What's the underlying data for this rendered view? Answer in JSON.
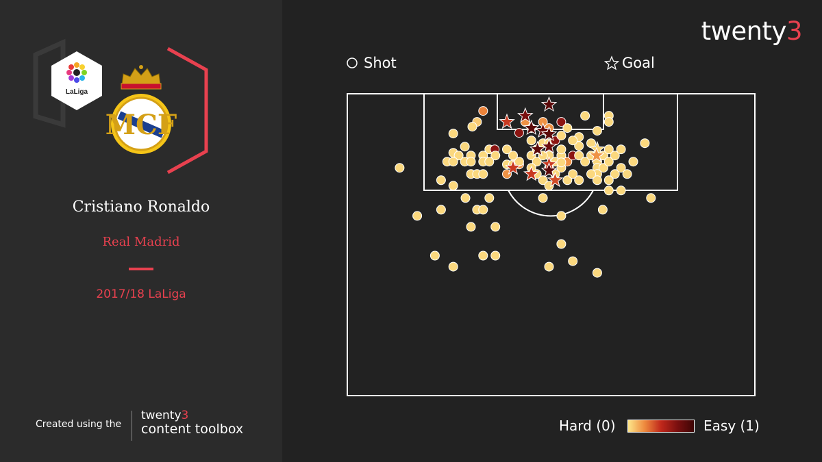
{
  "brand": {
    "name": "twenty",
    "number": "3"
  },
  "legend": {
    "shot": "Shot",
    "goal": "Goal"
  },
  "logos": {
    "league_logo_text": "LaLiga",
    "club_crest": "real-madrid-crest"
  },
  "player": {
    "name": "Cristiano Ronaldo",
    "team": "Real Madrid",
    "season": "2017/18 LaLiga"
  },
  "credit": {
    "prefix": "Created using the",
    "brand_name": "twenty",
    "brand_number": "3",
    "tool": "content toolbox"
  },
  "scale": {
    "low": "Hard (0)",
    "high": "Easy (1)"
  },
  "colors": {
    "accent": "#e8414f",
    "easy": "#3d0505",
    "hard": "#fde68a"
  },
  "chart_data": {
    "type": "scatter",
    "title": "",
    "xlabel": "",
    "ylabel": "",
    "xlim": [
      0,
      600
    ],
    "ylim": [
      0,
      440
    ],
    "color_scale": "xG difficulty: Hard (0) to Easy (1)",
    "series": [
      {
        "name": "Shot",
        "marker": "circle",
        "points": [
          {
            "x": 200,
            "y": 25,
            "v": 0.35
          },
          {
            "x": 191,
            "y": 41,
            "v": 0.1
          },
          {
            "x": 184,
            "y": 48,
            "v": 0.05
          },
          {
            "x": 156,
            "y": 58,
            "v": 0.05
          },
          {
            "x": 173,
            "y": 77,
            "v": 0.05
          },
          {
            "x": 209,
            "y": 81,
            "v": 0.05
          },
          {
            "x": 217,
            "y": 81,
            "v": 0.75
          },
          {
            "x": 235,
            "y": 81,
            "v": 0.05
          },
          {
            "x": 156,
            "y": 86,
            "v": 0.05
          },
          {
            "x": 164,
            "y": 90,
            "v": 0.05
          },
          {
            "x": 182,
            "y": 90,
            "v": 0.05
          },
          {
            "x": 200,
            "y": 90,
            "v": 0.05
          },
          {
            "x": 218,
            "y": 90,
            "v": 0.05
          },
          {
            "x": 244,
            "y": 90,
            "v": 0.05
          },
          {
            "x": 147,
            "y": 99,
            "v": 0.05
          },
          {
            "x": 156,
            "y": 99,
            "v": 0.05
          },
          {
            "x": 173,
            "y": 99,
            "v": 0.05
          },
          {
            "x": 182,
            "y": 99,
            "v": 0.05
          },
          {
            "x": 200,
            "y": 99,
            "v": 0.05
          },
          {
            "x": 209,
            "y": 99,
            "v": 0.05
          },
          {
            "x": 235,
            "y": 103,
            "v": 0.05
          },
          {
            "x": 244,
            "y": 103,
            "v": 0.05
          },
          {
            "x": 253,
            "y": 103,
            "v": 0.3
          },
          {
            "x": 182,
            "y": 117,
            "v": 0.05
          },
          {
            "x": 191,
            "y": 117,
            "v": 0.05
          },
          {
            "x": 200,
            "y": 117,
            "v": 0.05
          },
          {
            "x": 235,
            "y": 117,
            "v": 0.3
          },
          {
            "x": 138,
            "y": 126,
            "v": 0.05
          },
          {
            "x": 156,
            "y": 134,
            "v": 0.05
          },
          {
            "x": 77,
            "y": 108,
            "v": 0.05
          },
          {
            "x": 253,
            "y": 99,
            "v": 0.05
          },
          {
            "x": 271,
            "y": 90,
            "v": 0.05
          },
          {
            "x": 279,
            "y": 81,
            "v": 0.05
          },
          {
            "x": 279,
            "y": 99,
            "v": 0.05
          },
          {
            "x": 279,
            "y": 117,
            "v": 0.05
          },
          {
            "x": 297,
            "y": 90,
            "v": 0.05
          },
          {
            "x": 297,
            "y": 108,
            "v": 0.05
          },
          {
            "x": 306,
            "y": 99,
            "v": 0.05
          },
          {
            "x": 315,
            "y": 90,
            "v": 0.05
          },
          {
            "x": 315,
            "y": 108,
            "v": 0.05
          },
          {
            "x": 324,
            "y": 99,
            "v": 0.3
          },
          {
            "x": 332,
            "y": 90,
            "v": 0.75
          },
          {
            "x": 341,
            "y": 90,
            "v": 0.05
          },
          {
            "x": 341,
            "y": 76,
            "v": 0.05
          },
          {
            "x": 341,
            "y": 63,
            "v": 0.05
          },
          {
            "x": 350,
            "y": 99,
            "v": 0.05
          },
          {
            "x": 359,
            "y": 90,
            "v": 0.05
          },
          {
            "x": 359,
            "y": 72,
            "v": 0.05
          },
          {
            "x": 368,
            "y": 99,
            "v": 0.05
          },
          {
            "x": 368,
            "y": 108,
            "v": 0.05
          },
          {
            "x": 368,
            "y": 117,
            "v": 0.05
          },
          {
            "x": 368,
            "y": 126,
            "v": 0.05
          },
          {
            "x": 377,
            "y": 90,
            "v": 0.05
          },
          {
            "x": 377,
            "y": 108,
            "v": 0.05
          },
          {
            "x": 385,
            "y": 81,
            "v": 0.05
          },
          {
            "x": 385,
            "y": 99,
            "v": 0.05
          },
          {
            "x": 385,
            "y": 126,
            "v": 0.05
          },
          {
            "x": 394,
            "y": 90,
            "v": 0.05
          },
          {
            "x": 394,
            "y": 117,
            "v": 0.05
          },
          {
            "x": 403,
            "y": 81,
            "v": 0.05
          },
          {
            "x": 403,
            "y": 108,
            "v": 0.05
          },
          {
            "x": 412,
            "y": 117,
            "v": 0.05
          },
          {
            "x": 421,
            "y": 99,
            "v": 0.05
          },
          {
            "x": 438,
            "y": 72,
            "v": 0.05
          },
          {
            "x": 368,
            "y": 54,
            "v": 0.05
          },
          {
            "x": 385,
            "y": 32,
            "v": 0.05
          },
          {
            "x": 385,
            "y": 41,
            "v": 0.05
          },
          {
            "x": 350,
            "y": 32,
            "v": 0.05
          },
          {
            "x": 315,
            "y": 41,
            "v": 0.75
          },
          {
            "x": 297,
            "y": 50,
            "v": 0.3
          },
          {
            "x": 288,
            "y": 41,
            "v": 0.3
          },
          {
            "x": 271,
            "y": 50,
            "v": 0.3
          },
          {
            "x": 262,
            "y": 41,
            "v": 0.3
          },
          {
            "x": 253,
            "y": 57,
            "v": 0.75
          },
          {
            "x": 271,
            "y": 68,
            "v": 0.05
          },
          {
            "x": 288,
            "y": 72,
            "v": 0.05
          },
          {
            "x": 297,
            "y": 72,
            "v": 0.05
          },
          {
            "x": 306,
            "y": 68,
            "v": 0.75
          },
          {
            "x": 315,
            "y": 61,
            "v": 0.05
          },
          {
            "x": 324,
            "y": 50,
            "v": 0.05
          },
          {
            "x": 332,
            "y": 68,
            "v": 0.05
          },
          {
            "x": 315,
            "y": 81,
            "v": 0.05
          },
          {
            "x": 288,
            "y": 90,
            "v": 0.05
          },
          {
            "x": 271,
            "y": 108,
            "v": 0.05
          },
          {
            "x": 288,
            "y": 126,
            "v": 0.05
          },
          {
            "x": 297,
            "y": 134,
            "v": 0.05
          },
          {
            "x": 306,
            "y": 117,
            "v": 0.05
          },
          {
            "x": 324,
            "y": 126,
            "v": 0.05
          },
          {
            "x": 332,
            "y": 117,
            "v": 0.05
          },
          {
            "x": 341,
            "y": 126,
            "v": 0.05
          },
          {
            "x": 359,
            "y": 117,
            "v": 0.05
          },
          {
            "x": 385,
            "y": 141,
            "v": 0.05
          },
          {
            "x": 403,
            "y": 141,
            "v": 0.05
          },
          {
            "x": 447,
            "y": 152,
            "v": 0.05
          },
          {
            "x": 288,
            "y": 152,
            "v": 0.05
          },
          {
            "x": 174,
            "y": 152,
            "v": 0.05
          },
          {
            "x": 209,
            "y": 152,
            "v": 0.05
          },
          {
            "x": 138,
            "y": 169,
            "v": 0.05
          },
          {
            "x": 191,
            "y": 169,
            "v": 0.05
          },
          {
            "x": 200,
            "y": 169,
            "v": 0.05
          },
          {
            "x": 103,
            "y": 178,
            "v": 0.05
          },
          {
            "x": 315,
            "y": 178,
            "v": 0.05
          },
          {
            "x": 376,
            "y": 169,
            "v": 0.05
          },
          {
            "x": 182,
            "y": 194,
            "v": 0.05
          },
          {
            "x": 218,
            "y": 194,
            "v": 0.05
          },
          {
            "x": 315,
            "y": 219,
            "v": 0.05
          },
          {
            "x": 129,
            "y": 236,
            "v": 0.05
          },
          {
            "x": 156,
            "y": 252,
            "v": 0.05
          },
          {
            "x": 200,
            "y": 236,
            "v": 0.05
          },
          {
            "x": 218,
            "y": 236,
            "v": 0.05
          },
          {
            "x": 297,
            "y": 252,
            "v": 0.05
          },
          {
            "x": 332,
            "y": 244,
            "v": 0.05
          },
          {
            "x": 368,
            "y": 261,
            "v": 0.05
          },
          {
            "x": 315,
            "y": 100,
            "v": 0.05
          }
        ]
      },
      {
        "name": "Goal",
        "marker": "star",
        "points": [
          {
            "x": 297,
            "y": 16,
            "v": 0.9
          },
          {
            "x": 235,
            "y": 41,
            "v": 0.55
          },
          {
            "x": 262,
            "y": 32,
            "v": 0.8
          },
          {
            "x": 271,
            "y": 50,
            "v": 0.9
          },
          {
            "x": 288,
            "y": 54,
            "v": 0.85
          },
          {
            "x": 297,
            "y": 59,
            "v": 0.9
          },
          {
            "x": 280,
            "y": 81,
            "v": 0.9
          },
          {
            "x": 297,
            "y": 77,
            "v": 0.85
          },
          {
            "x": 244,
            "y": 108,
            "v": 0.55
          },
          {
            "x": 297,
            "y": 103,
            "v": 0.55
          },
          {
            "x": 271,
            "y": 117,
            "v": 0.55
          },
          {
            "x": 306,
            "y": 126,
            "v": 0.5
          },
          {
            "x": 297,
            "y": 112,
            "v": 0.9
          },
          {
            "x": 368,
            "y": 81,
            "v": 0.05
          },
          {
            "x": 367,
            "y": 90,
            "v": 0.3
          }
        ]
      }
    ]
  }
}
